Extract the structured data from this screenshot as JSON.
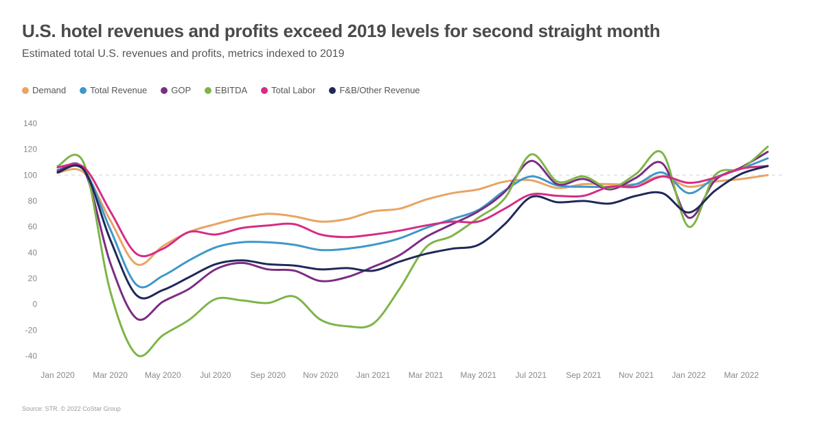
{
  "chart_data": {
    "type": "line",
    "title": "U.S. hotel revenues and profits exceed 2019 levels for second straight month",
    "subtitle": "Estimated total U.S. revenues and profits, metrics indexed to 2019",
    "source": "Source: STR. © 2022 CoStar Group",
    "xlabel": "",
    "ylabel": "",
    "ylim": [
      -40,
      140
    ],
    "yticks": [
      -40,
      -20,
      0,
      20,
      40,
      60,
      80,
      100,
      120,
      140
    ],
    "reference_line": 100,
    "grid": false,
    "legend_position": "top-left",
    "x": [
      "Jan 2020",
      "Feb 2020",
      "Mar 2020",
      "Apr 2020",
      "May 2020",
      "Jun 2020",
      "Jul 2020",
      "Aug 2020",
      "Sep 2020",
      "Oct 2020",
      "Nov 2020",
      "Dec 2020",
      "Jan 2021",
      "Feb 2021",
      "Mar 2021",
      "Apr 2021",
      "May 2021",
      "Jun 2021",
      "Jul 2021",
      "Aug 2021",
      "Sep 2021",
      "Oct 2021",
      "Nov 2021",
      "Dec 2021",
      "Jan 2022",
      "Feb 2022",
      "Mar 2022",
      "Apr 2022"
    ],
    "xtick_labels": [
      "Jan 2020",
      "Mar 2020",
      "May 2020",
      "Jul 2020",
      "Sep 2020",
      "Nov 2020",
      "Jan 2021",
      "Mar 2021",
      "May 2021",
      "Jul 2021",
      "Sep 2021",
      "Nov 2021",
      "Jan 2022",
      "Mar 2022"
    ],
    "series": [
      {
        "name": "Demand",
        "color": "#E8A463",
        "values": [
          102,
          102,
          65,
          31,
          45,
          56,
          62,
          67,
          70,
          68,
          64,
          66,
          72,
          74,
          81,
          86,
          89,
          95,
          96,
          90,
          93,
          93,
          93,
          99,
          91,
          95,
          97,
          100
        ]
      },
      {
        "name": "Total Revenue",
        "color": "#3E98C9",
        "values": [
          104,
          104,
          58,
          15,
          22,
          34,
          44,
          48,
          48,
          46,
          42,
          43,
          46,
          51,
          59,
          66,
          73,
          88,
          99,
          92,
          91,
          91,
          93,
          102,
          86,
          98,
          105,
          113
        ]
      },
      {
        "name": "GOP",
        "color": "#7B2D83",
        "values": [
          103,
          104,
          32,
          -11,
          2,
          12,
          27,
          32,
          27,
          26,
          18,
          21,
          29,
          38,
          52,
          62,
          72,
          87,
          111,
          93,
          97,
          89,
          98,
          109,
          67,
          96,
          106,
          118
        ]
      },
      {
        "name": "EBITDA",
        "color": "#7DB547",
        "values": [
          107,
          109,
          10,
          -39,
          -24,
          -12,
          4,
          3,
          1,
          6,
          -12,
          -17,
          -15,
          12,
          44,
          53,
          67,
          82,
          116,
          95,
          99,
          90,
          101,
          117,
          60,
          100,
          105,
          122
        ]
      },
      {
        "name": "Total Labor",
        "color": "#D42D85",
        "values": [
          106,
          106,
          72,
          39,
          43,
          56,
          54,
          59,
          61,
          62,
          54,
          52,
          54,
          57,
          61,
          64,
          64,
          74,
          85,
          84,
          84,
          91,
          91,
          99,
          94,
          98,
          105,
          107
        ]
      },
      {
        "name": "F&B/Other Revenue",
        "color": "#1F2858",
        "values": [
          102,
          104,
          50,
          7,
          11,
          21,
          31,
          34,
          31,
          30,
          27,
          28,
          26,
          33,
          39,
          43,
          46,
          62,
          83,
          79,
          80,
          78,
          84,
          86,
          71,
          88,
          101,
          107
        ]
      }
    ]
  }
}
